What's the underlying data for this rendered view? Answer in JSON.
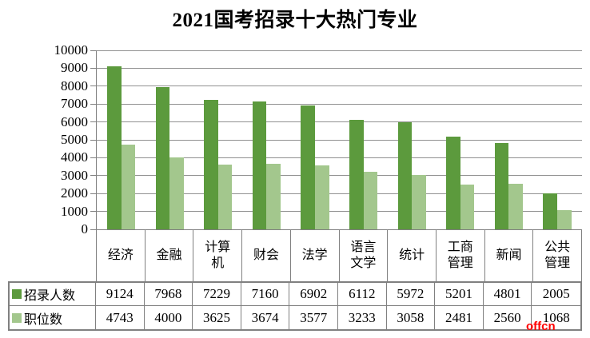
{
  "title": "2021国考招录十大热门专业",
  "watermark": "offcn",
  "chart_data": {
    "type": "bar",
    "title": "2021国考招录十大热门专业",
    "categories": [
      "经济",
      "金融",
      "计算机",
      "财会",
      "法学",
      "语言文学",
      "统计",
      "工商管理",
      "新闻",
      "公共管理"
    ],
    "series": [
      {
        "name": "招录人数",
        "color": "#5c9a3d",
        "values": [
          9124,
          7968,
          7229,
          7160,
          6902,
          6112,
          5972,
          5201,
          4801,
          2005
        ]
      },
      {
        "name": "职位数",
        "color": "#a3c78d",
        "values": [
          4743,
          4000,
          3625,
          3674,
          3577,
          3233,
          3058,
          2481,
          2560,
          1068
        ]
      }
    ],
    "ylabel": "",
    "xlabel": "",
    "ylim": [
      0,
      10000
    ],
    "ytick_step": 1000,
    "grid": true,
    "legend_position": "data-table-left"
  },
  "colors": {
    "series_dark_green": "#5c9a3d",
    "series_light_green": "#a3c78d",
    "gridline": "#919191",
    "axis_and_table_border": "#808080",
    "watermark_red": "#ff0000",
    "text": "#000000",
    "background": "#ffffff"
  }
}
